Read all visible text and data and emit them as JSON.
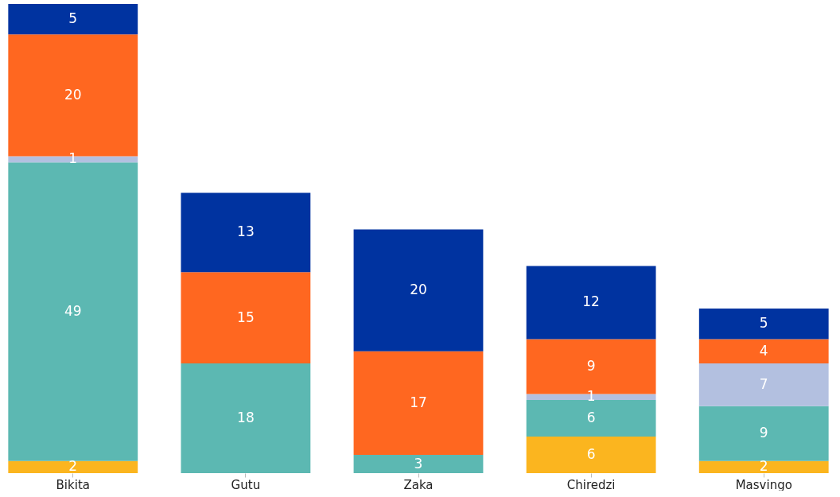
{
  "chart_data": {
    "type": "bar",
    "stacked": true,
    "data_labels": true,
    "grid": false,
    "legend": false,
    "categories": [
      "Bikita",
      "Gutu",
      "Zaka",
      "Chiredzi",
      "Masvingo"
    ],
    "series": [
      {
        "color": "#fbb51f",
        "values": [
          2,
          null,
          null,
          6,
          2
        ]
      },
      {
        "color": "#5cb8b2",
        "values": [
          49,
          18,
          3,
          6,
          9
        ]
      },
      {
        "color": "#b3c0e0",
        "values": [
          1,
          null,
          null,
          1,
          7
        ]
      },
      {
        "color": "#ff6720",
        "values": [
          20,
          15,
          17,
          9,
          4
        ]
      },
      {
        "color": "#0033a0",
        "values": [
          5,
          13,
          20,
          12,
          5
        ]
      }
    ]
  }
}
